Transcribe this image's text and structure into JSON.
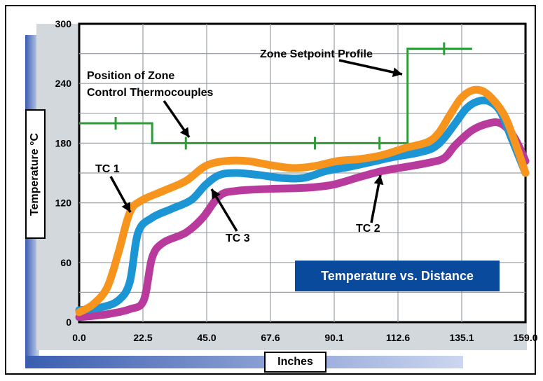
{
  "chart_data": {
    "type": "line",
    "title": "Temperature vs. Distance",
    "xlabel": "Inches",
    "ylabel": "Temperature °C",
    "xlim": [
      0,
      159
    ],
    "ylim": [
      0,
      300
    ],
    "grid": true,
    "x_ticks": [
      "0.0",
      "22.5",
      "45.0",
      "67.6",
      "90.1",
      "112.6",
      "135.1",
      "159.0"
    ],
    "y_ticks": [
      "0",
      "60",
      "120",
      "180",
      "240",
      "300"
    ],
    "series": [
      {
        "name": "TC 1",
        "color": "#f7941d",
        "x": [
          0,
          5,
          10,
          14,
          18,
          22,
          30,
          38,
          45,
          52,
          60,
          68,
          76,
          84,
          92,
          100,
          108,
          116,
          124,
          128,
          132,
          136,
          140,
          144,
          148,
          152,
          156,
          159
        ],
        "y": [
          10,
          18,
          35,
          70,
          110,
          122,
          132,
          142,
          157,
          162,
          162,
          158,
          155,
          157,
          162,
          164,
          168,
          175,
          181,
          190,
          208,
          225,
          233,
          232,
          222,
          205,
          175,
          150
        ]
      },
      {
        "name": "TC 2",
        "color": "#b83a9c",
        "x": [
          0,
          10,
          18,
          23,
          26,
          30,
          38,
          44,
          50,
          56,
          68,
          80,
          90,
          100,
          108,
          116,
          124,
          130,
          134,
          140,
          146,
          150,
          154,
          157,
          159
        ],
        "y": [
          5,
          8,
          13,
          22,
          65,
          80,
          90,
          105,
          127,
          132,
          134,
          135,
          138,
          146,
          152,
          156,
          160,
          165,
          178,
          193,
          200,
          200,
          190,
          175,
          162
        ]
      },
      {
        "name": "TC 3",
        "color": "#1b95d3",
        "x": [
          0,
          8,
          14,
          18,
          21,
          26,
          33,
          40,
          45,
          50,
          56,
          64,
          72,
          80,
          88,
          96,
          104,
          112,
          120,
          126,
          130,
          134,
          138,
          142,
          146,
          150,
          154,
          159
        ],
        "y": [
          12,
          15,
          22,
          40,
          90,
          105,
          114,
          123,
          138,
          148,
          150,
          148,
          145,
          145,
          152,
          156,
          161,
          166,
          170,
          175,
          185,
          200,
          215,
          222,
          222,
          212,
          185,
          150
        ]
      },
      {
        "name": "Zone Setpoint Profile",
        "color": "#2e9a3a",
        "x": [
          0,
          26,
          26,
          117,
          117,
          140
        ],
        "y": [
          200,
          200,
          180,
          180,
          275,
          275
        ]
      }
    ],
    "setpoint_markers": [
      {
        "x": 13,
        "y": 200
      },
      {
        "x": 38,
        "y": 180
      },
      {
        "x": 84,
        "y": 180
      },
      {
        "x": 107,
        "y": 180
      },
      {
        "x": 130,
        "y": 275
      }
    ],
    "annotations": {
      "tc1": "TC 1",
      "tc2": "TC 2",
      "tc3": "TC 3",
      "setpoint": "Zone Setpoint Profile",
      "position_line1": "Position of Zone",
      "position_line2": "Control Thermocouples"
    }
  }
}
